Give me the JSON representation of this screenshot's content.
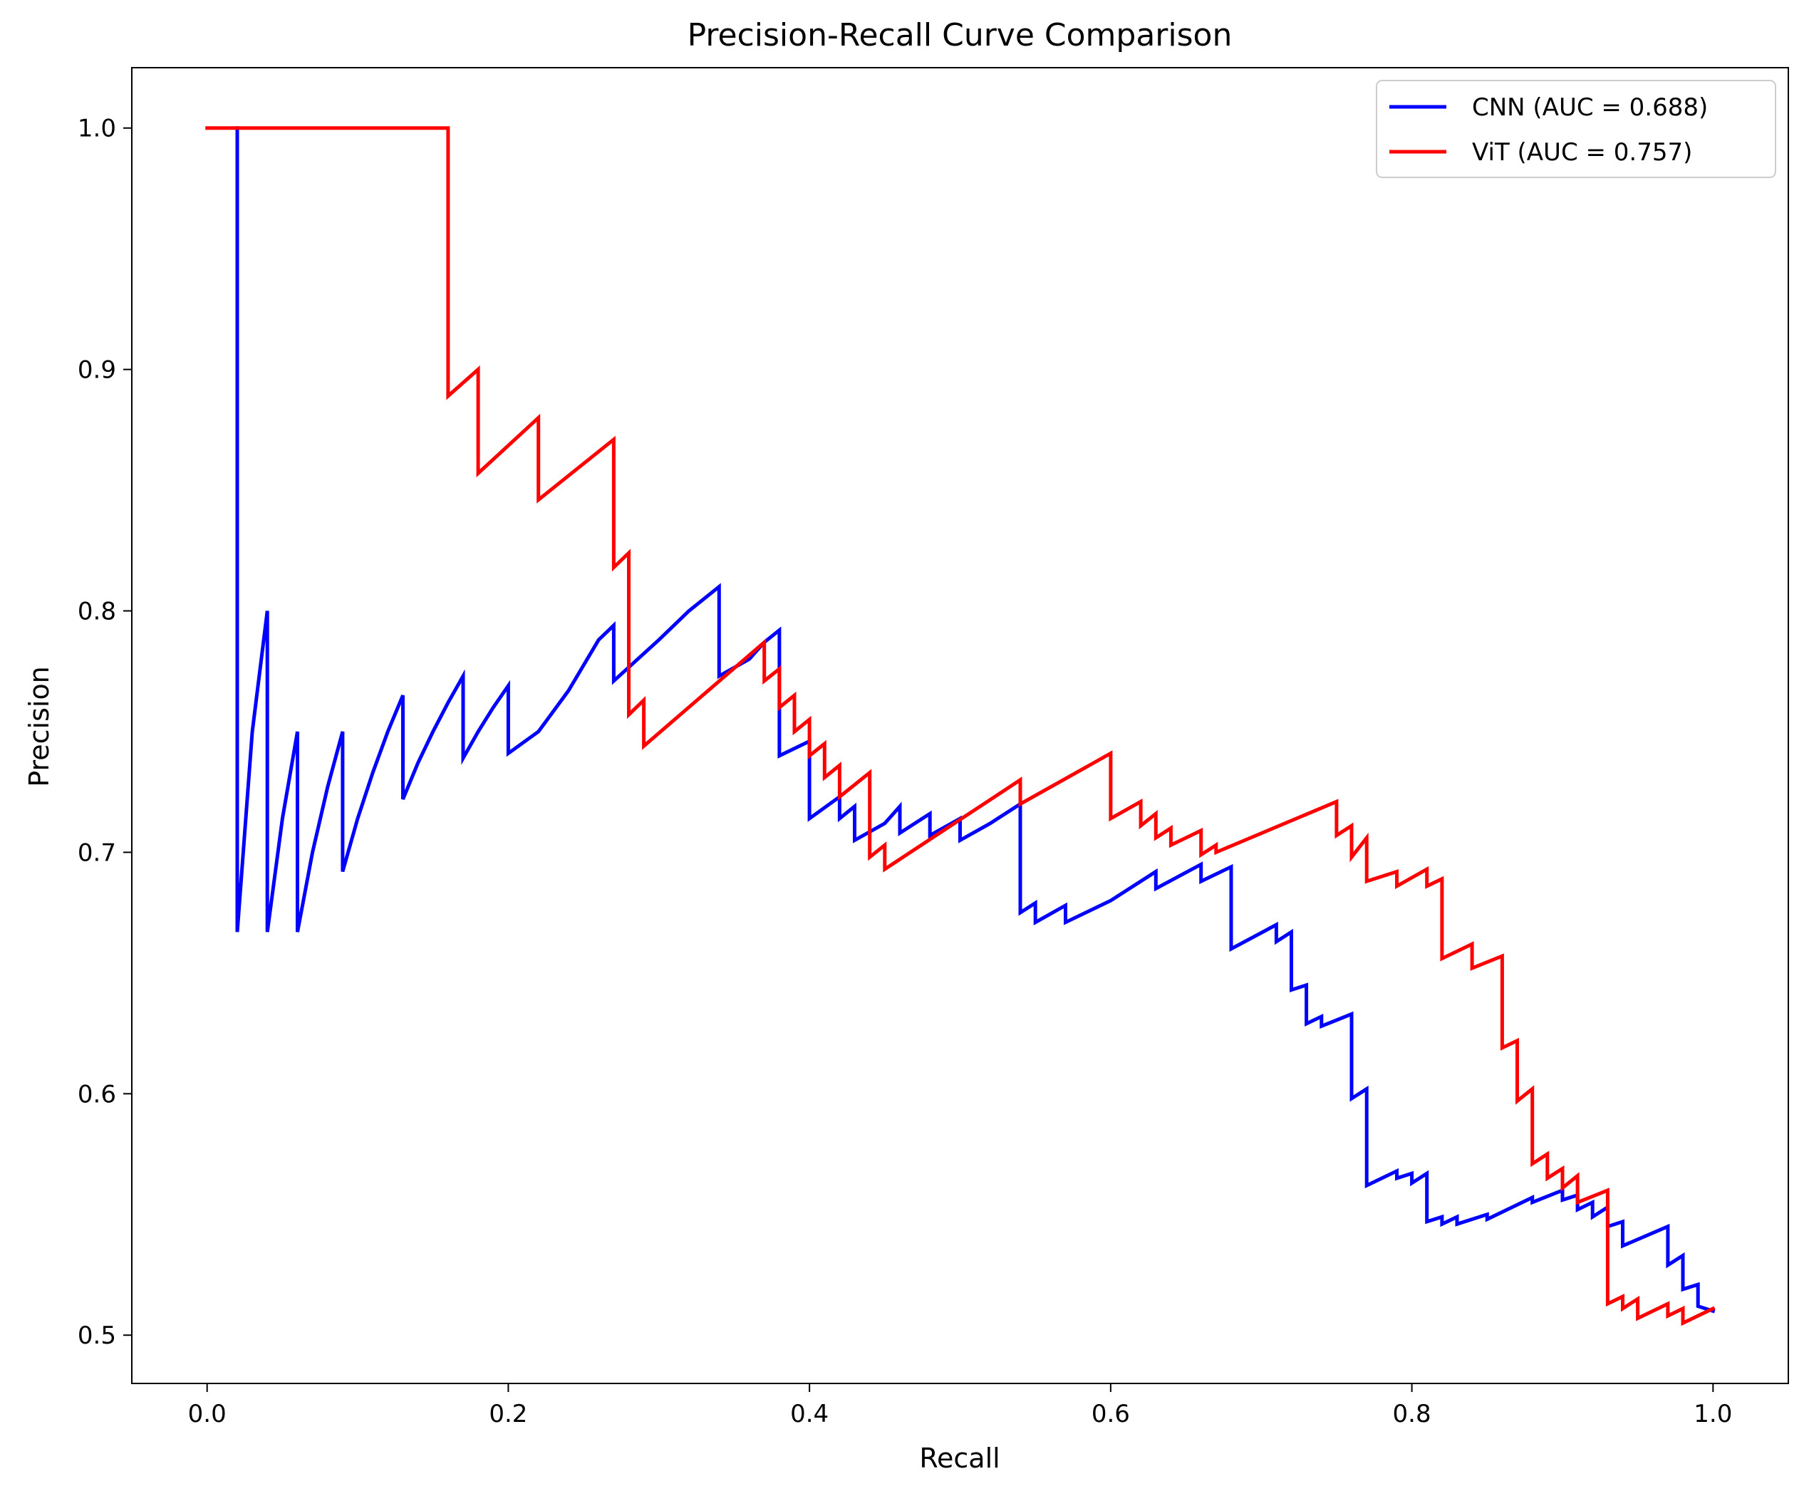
{
  "chart_data": {
    "type": "line",
    "title": "Precision-Recall Curve Comparison",
    "xlabel": "Recall",
    "ylabel": "Precision",
    "xlim": [
      -0.05,
      1.05
    ],
    "ylim": [
      0.48,
      1.025
    ],
    "x_ticks": [
      0.0,
      0.2,
      0.4,
      0.6,
      0.8,
      1.0
    ],
    "x_tick_labels": [
      "0.0",
      "0.2",
      "0.4",
      "0.6",
      "0.8",
      "1.0"
    ],
    "y_ticks": [
      0.5,
      0.6,
      0.7,
      0.8,
      0.9,
      1.0
    ],
    "y_tick_labels": [
      "0.5",
      "0.6",
      "0.7",
      "0.8",
      "0.9",
      "1.0"
    ],
    "grid": false,
    "legend_position": "top-right",
    "series": [
      {
        "name": "CNN (AUC = 0.688)",
        "color": "#0000ff",
        "x": [
          0.02,
          0.02,
          0.03,
          0.04,
          0.04,
          0.05,
          0.06,
          0.06,
          0.07,
          0.08,
          0.09,
          0.09,
          0.1,
          0.11,
          0.12,
          0.13,
          0.13,
          0.14,
          0.15,
          0.16,
          0.17,
          0.17,
          0.18,
          0.19,
          0.2,
          0.2,
          0.22,
          0.24,
          0.26,
          0.27,
          0.27,
          0.3,
          0.32,
          0.34,
          0.34,
          0.36,
          0.37,
          0.38,
          0.38,
          0.4,
          0.4,
          0.42,
          0.42,
          0.43,
          0.43,
          0.45,
          0.46,
          0.46,
          0.48,
          0.48,
          0.5,
          0.5,
          0.52,
          0.54,
          0.54,
          0.55,
          0.55,
          0.57,
          0.57,
          0.6,
          0.63,
          0.63,
          0.66,
          0.66,
          0.68,
          0.68,
          0.71,
          0.71,
          0.72,
          0.72,
          0.73,
          0.73,
          0.74,
          0.74,
          0.76,
          0.76,
          0.77,
          0.77,
          0.79,
          0.79,
          0.8,
          0.8,
          0.81,
          0.81,
          0.82,
          0.82,
          0.83,
          0.83,
          0.85,
          0.85,
          0.88,
          0.88,
          0.9,
          0.9,
          0.91,
          0.91,
          0.92,
          0.92,
          0.93,
          0.93,
          0.94,
          0.94,
          0.97,
          0.97,
          0.98,
          0.98,
          0.99,
          0.99,
          1.0
        ],
        "y": [
          1.0,
          0.667,
          0.75,
          0.8,
          0.667,
          0.714,
          0.75,
          0.667,
          0.7,
          0.727,
          0.75,
          0.692,
          0.714,
          0.733,
          0.75,
          0.765,
          0.722,
          0.737,
          0.75,
          0.762,
          0.773,
          0.739,
          0.75,
          0.76,
          0.769,
          0.741,
          0.75,
          0.767,
          0.788,
          0.794,
          0.771,
          0.788,
          0.8,
          0.81,
          0.773,
          0.78,
          0.787,
          0.792,
          0.74,
          0.746,
          0.714,
          0.723,
          0.714,
          0.719,
          0.705,
          0.712,
          0.719,
          0.708,
          0.716,
          0.707,
          0.714,
          0.705,
          0.712,
          0.72,
          0.675,
          0.679,
          0.671,
          0.678,
          0.671,
          0.68,
          0.692,
          0.685,
          0.695,
          0.688,
          0.694,
          0.66,
          0.67,
          0.663,
          0.667,
          0.643,
          0.645,
          0.629,
          0.632,
          0.628,
          0.633,
          0.598,
          0.602,
          0.562,
          0.568,
          0.565,
          0.567,
          0.563,
          0.567,
          0.547,
          0.549,
          0.546,
          0.549,
          0.546,
          0.55,
          0.548,
          0.557,
          0.555,
          0.56,
          0.556,
          0.558,
          0.552,
          0.555,
          0.549,
          0.553,
          0.545,
          0.547,
          0.537,
          0.545,
          0.529,
          0.533,
          0.519,
          0.521,
          0.512,
          0.51
        ]
      },
      {
        "name": "ViT (AUC = 0.757)",
        "color": "#ff0000",
        "x": [
          0.0,
          0.16,
          0.16,
          0.18,
          0.18,
          0.22,
          0.22,
          0.27,
          0.27,
          0.28,
          0.28,
          0.29,
          0.29,
          0.37,
          0.37,
          0.38,
          0.38,
          0.39,
          0.39,
          0.4,
          0.4,
          0.41,
          0.41,
          0.42,
          0.42,
          0.44,
          0.44,
          0.45,
          0.45,
          0.54,
          0.54,
          0.6,
          0.6,
          0.62,
          0.62,
          0.63,
          0.63,
          0.64,
          0.64,
          0.66,
          0.66,
          0.67,
          0.67,
          0.75,
          0.75,
          0.76,
          0.76,
          0.77,
          0.77,
          0.79,
          0.79,
          0.81,
          0.81,
          0.82,
          0.82,
          0.84,
          0.84,
          0.86,
          0.86,
          0.87,
          0.87,
          0.88,
          0.88,
          0.89,
          0.89,
          0.9,
          0.9,
          0.91,
          0.91,
          0.93,
          0.93,
          0.94,
          0.94,
          0.95,
          0.95,
          0.97,
          0.97,
          0.98,
          0.98,
          1.0
        ],
        "y": [
          1.0,
          1.0,
          0.889,
          0.9,
          0.857,
          0.88,
          0.846,
          0.871,
          0.818,
          0.824,
          0.757,
          0.763,
          0.744,
          0.787,
          0.771,
          0.776,
          0.76,
          0.765,
          0.75,
          0.755,
          0.74,
          0.745,
          0.731,
          0.736,
          0.723,
          0.733,
          0.698,
          0.703,
          0.693,
          0.73,
          0.72,
          0.741,
          0.714,
          0.721,
          0.711,
          0.716,
          0.706,
          0.71,
          0.703,
          0.709,
          0.699,
          0.703,
          0.7,
          0.721,
          0.707,
          0.711,
          0.698,
          0.706,
          0.688,
          0.692,
          0.686,
          0.693,
          0.686,
          0.689,
          0.656,
          0.662,
          0.652,
          0.657,
          0.619,
          0.622,
          0.597,
          0.602,
          0.571,
          0.575,
          0.565,
          0.569,
          0.561,
          0.566,
          0.555,
          0.56,
          0.513,
          0.516,
          0.511,
          0.515,
          0.507,
          0.513,
          0.508,
          0.511,
          0.505,
          0.511
        ]
      }
    ]
  }
}
